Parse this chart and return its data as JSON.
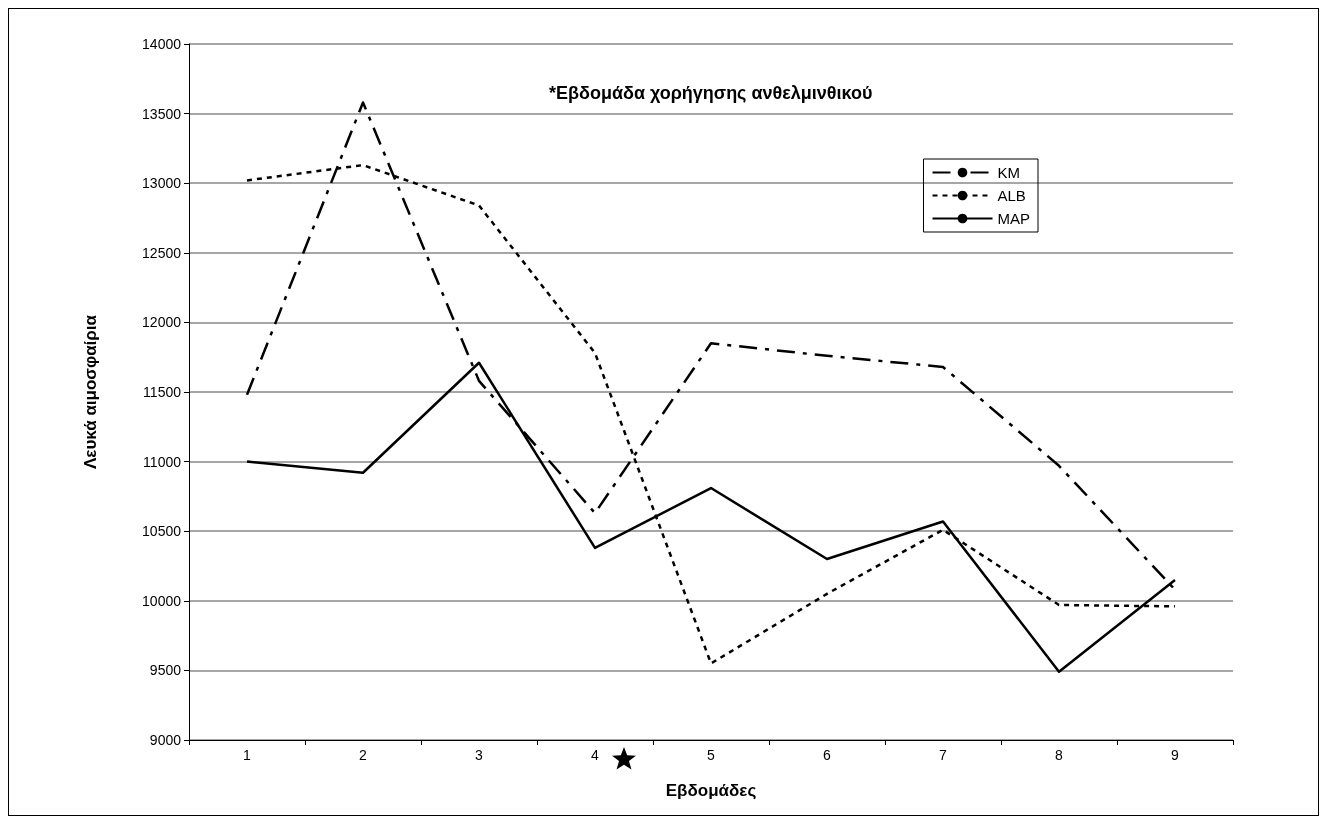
{
  "chart_data": {
    "type": "line",
    "xlabel": "Εβδομάδες",
    "ylabel": "Λευκά αιμοσφαίρια",
    "annotations": [
      "*Εβδομάδα χορήγησης ανθελμινθικού"
    ],
    "categories": [
      "1",
      "2",
      "3",
      "4",
      "5",
      "6",
      "7",
      "8",
      "9"
    ],
    "series": [
      {
        "name": "KM",
        "color": "#000000",
        "line_style": "dashed",
        "values": [
          11480,
          13580,
          11580,
          10630,
          11850,
          11760,
          11680,
          10970,
          10080
        ]
      },
      {
        "name": "ALB",
        "color": "#000000",
        "line_style": "dotted",
        "values": [
          13020,
          13130,
          12840,
          11780,
          9550,
          10050,
          10510,
          9970,
          9960
        ]
      },
      {
        "name": "MAP",
        "color": "#000000",
        "line_style": "solid",
        "values": [
          11000,
          10920,
          11710,
          10380,
          10810,
          10300,
          10570,
          9490,
          10150
        ]
      }
    ],
    "ylim": [
      9000,
      14000
    ],
    "yticks": [
      9000,
      9500,
      10000,
      10500,
      11000,
      11500,
      12000,
      12500,
      13000,
      13500,
      14000
    ],
    "grid": "y",
    "legend": "top right",
    "marker": "none"
  }
}
